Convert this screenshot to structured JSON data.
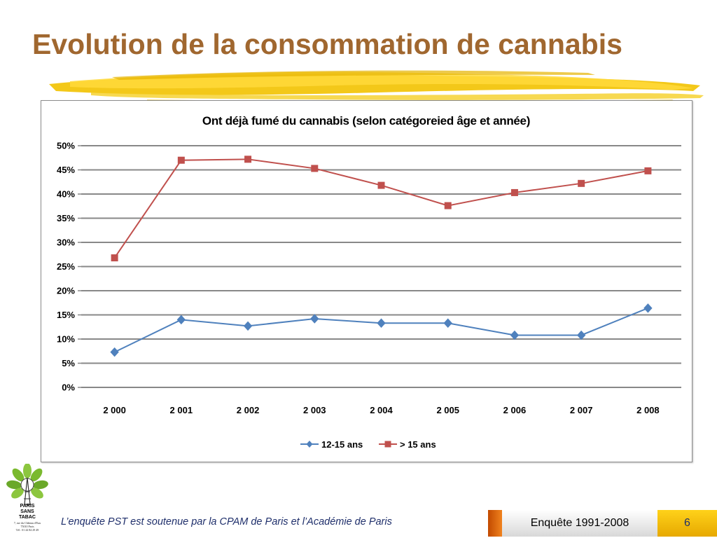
{
  "slide": {
    "title": "Evolution de la consommation de cannabis",
    "footer_text": "L’enquête PST est soutenue par la CPAM de Paris et l’Académie de Paris",
    "footer_tag": "Enquête 1991-2008",
    "page_number": "6",
    "logo": {
      "line1": "PARIS",
      "line2": "SANS",
      "line3": "TABAC",
      "address1": "7, rue du Château d'Eau",
      "address2": "75010 Paris",
      "address3": "Tél : 01 44 84 29 49"
    }
  },
  "colors": {
    "title": "#a0672f",
    "series_1": "#4f81bd",
    "series_2": "#c0504d",
    "gridline": "#888888",
    "footer_text": "#1f2f6b"
  },
  "chart_data": {
    "type": "line",
    "title": "Ont déjà fumé du cannabis (selon catégoreied âge et année)",
    "categories": [
      "2 000",
      "2 001",
      "2 002",
      "2 003",
      "2 004",
      "2 005",
      "2 006",
      "2 007",
      "2 008"
    ],
    "y_ticks": [
      "0%",
      "5%",
      "10%",
      "15%",
      "20%",
      "25%",
      "30%",
      "35%",
      "40%",
      "45%",
      "50%"
    ],
    "ylim": [
      0,
      50
    ],
    "y_unit": "%",
    "grid": true,
    "legend_position": "bottom",
    "series": [
      {
        "name": "12-15 ans",
        "marker": "diamond",
        "color": "#4f81bd",
        "values": [
          7.3,
          14.0,
          12.7,
          14.2,
          13.3,
          13.3,
          10.8,
          10.8,
          16.4
        ]
      },
      {
        "name": "> 15 ans",
        "marker": "square",
        "color": "#c0504d",
        "values": [
          26.8,
          47.0,
          47.2,
          45.3,
          41.8,
          37.6,
          40.3,
          42.2,
          44.8
        ]
      }
    ]
  }
}
